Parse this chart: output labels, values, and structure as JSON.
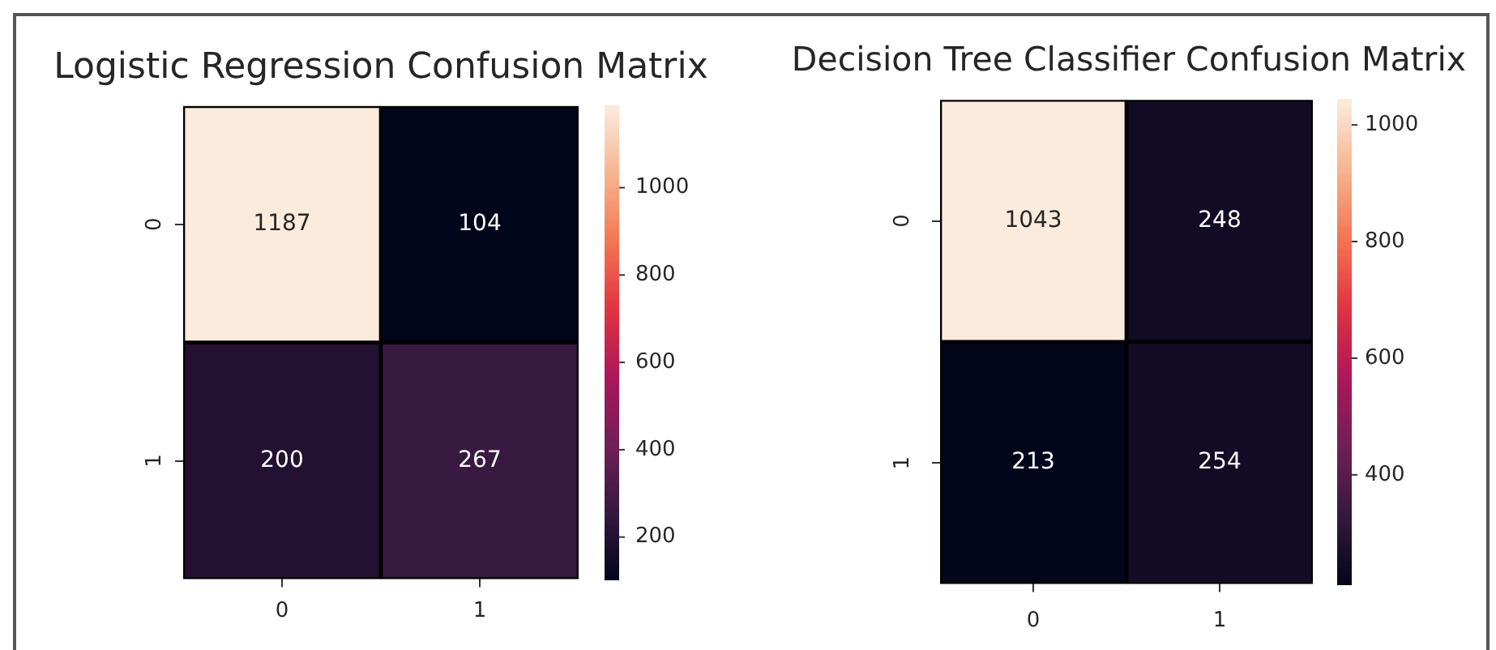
{
  "chart_data": [
    {
      "type": "heatmap",
      "title": "Logistic Regression Confusion Matrix",
      "categories": [
        "0",
        "1"
      ],
      "y_categories": [
        "0",
        "1"
      ],
      "cells": [
        [
          1187,
          104
        ],
        [
          200,
          267
        ]
      ],
      "clim": [
        104,
        1187
      ],
      "cticks": [
        200,
        400,
        600,
        800,
        1000
      ],
      "data_labels": true
    },
    {
      "type": "heatmap",
      "title": "Decision Tree Classifier Confusion Matrix",
      "categories": [
        "0",
        "1"
      ],
      "y_categories": [
        "0",
        "1"
      ],
      "cells": [
        [
          1043,
          248
        ],
        [
          213,
          254
        ]
      ],
      "clim": [
        213,
        1043
      ],
      "cticks": [
        400,
        600,
        800,
        1000
      ],
      "data_labels": true
    }
  ]
}
